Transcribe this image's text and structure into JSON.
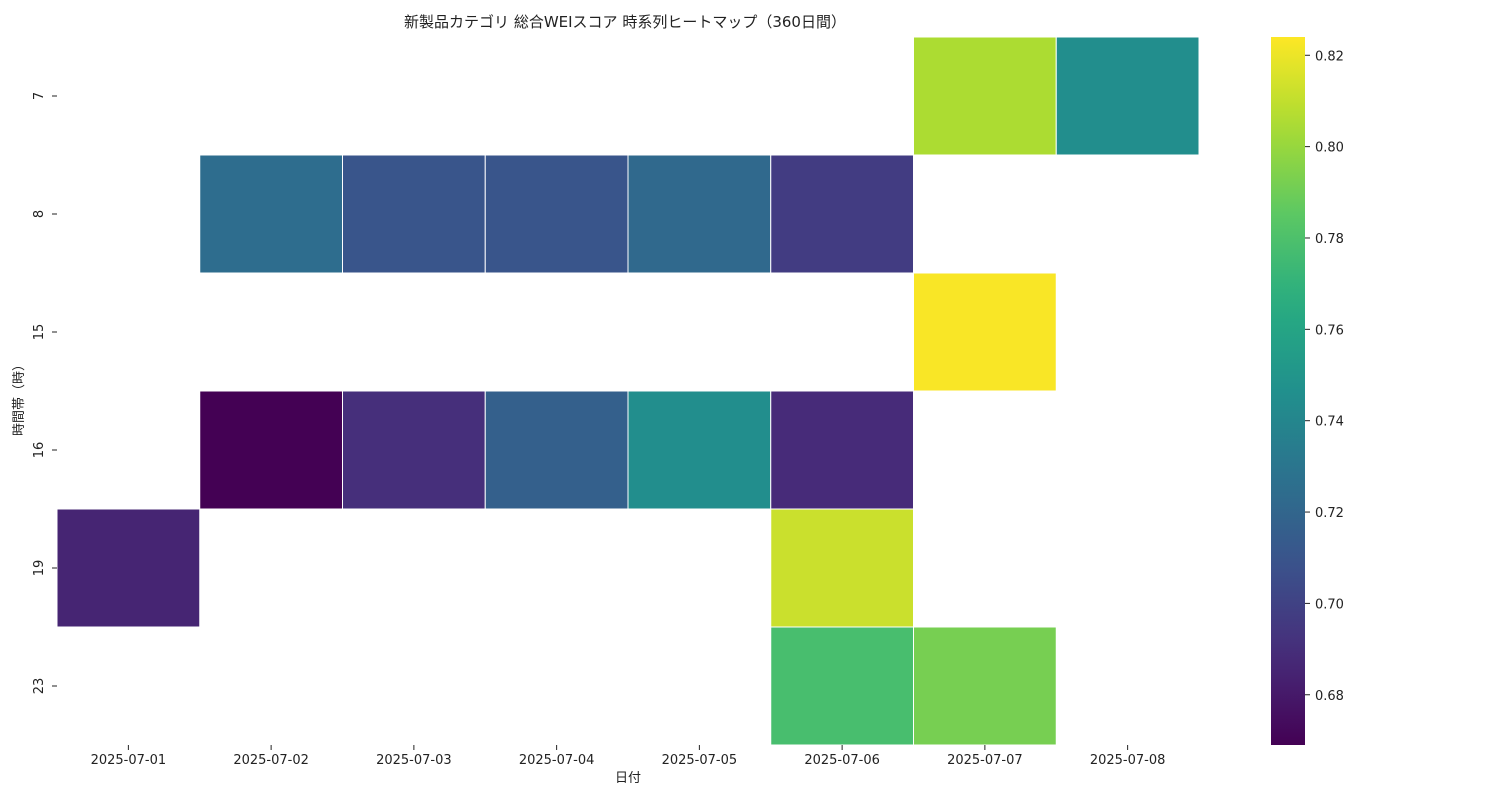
{
  "chart_data": {
    "type": "heatmap",
    "title": "新製品カテゴリ 総合WEIスコア 時系列ヒートマップ（360日間）",
    "xlabel": "日付",
    "ylabel": "時間帯（時）",
    "x_categories": [
      "2025-07-01",
      "2025-07-02",
      "2025-07-03",
      "2025-07-04",
      "2025-07-05",
      "2025-07-06",
      "2025-07-07",
      "2025-07-08"
    ],
    "y_categories": [
      "7",
      "8",
      "15",
      "16",
      "19",
      "23"
    ],
    "values": [
      [
        null,
        null,
        null,
        null,
        null,
        null,
        0.805,
        0.745
      ],
      [
        null,
        0.725,
        0.71,
        0.71,
        0.722,
        0.697,
        null,
        null
      ],
      [
        null,
        null,
        null,
        null,
        null,
        null,
        0.823,
        null
      ],
      [
        null,
        0.669,
        0.69,
        0.717,
        0.745,
        0.688,
        null,
        null
      ],
      [
        0.685,
        null,
        null,
        null,
        null,
        0.812,
        null,
        null
      ],
      [
        null,
        null,
        null,
        null,
        null,
        0.778,
        0.792,
        null
      ]
    ],
    "colorscale": "viridis",
    "colorbar": {
      "vmin": 0.669,
      "vmax": 0.824,
      "ticks": [
        0.68,
        0.7,
        0.72,
        0.74,
        0.76,
        0.78,
        0.8,
        0.82
      ],
      "tick_labels": [
        "0.68",
        "0.70",
        "0.72",
        "0.74",
        "0.76",
        "0.78",
        "0.80",
        "0.82"
      ]
    },
    "grid": false,
    "missing_cells": "blank"
  }
}
